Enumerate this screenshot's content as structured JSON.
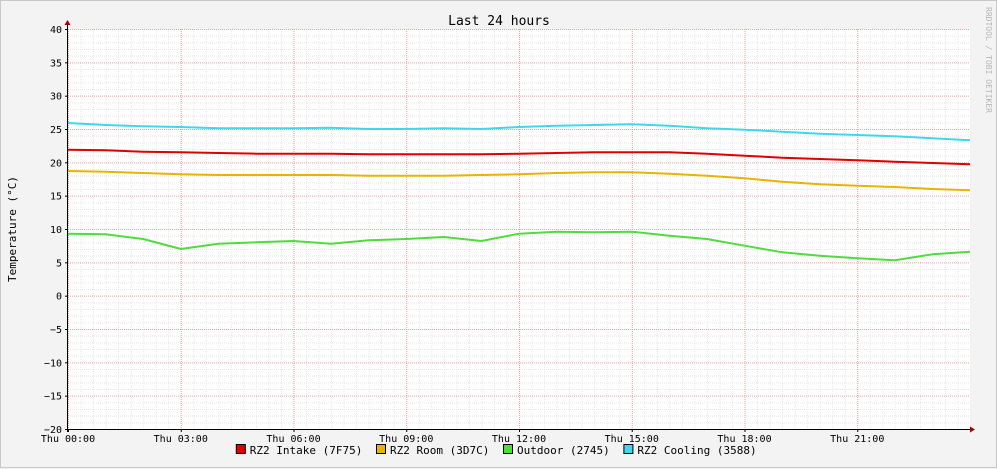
{
  "chart_data": {
    "type": "line",
    "title": "Last 24 hours",
    "ylabel": "Temperature (°C)",
    "xlabel": "",
    "watermark": "RRDTOOL / TOBI OETIKER",
    "ylim": [
      -20,
      40
    ],
    "yticks": [
      40,
      35,
      30,
      25,
      20,
      15,
      10,
      5,
      0,
      -5,
      -10,
      -15,
      -20
    ],
    "xlim": [
      0,
      24
    ],
    "xticks": [
      {
        "x": 0,
        "label": "Thu 00:00"
      },
      {
        "x": 3,
        "label": "Thu 03:00"
      },
      {
        "x": 6,
        "label": "Thu 06:00"
      },
      {
        "x": 9,
        "label": "Thu 09:00"
      },
      {
        "x": 12,
        "label": "Thu 12:00"
      },
      {
        "x": 15,
        "label": "Thu 15:00"
      },
      {
        "x": 18,
        "label": "Thu 18:00"
      },
      {
        "x": 21,
        "label": "Thu 21:00"
      }
    ],
    "grid": true,
    "legend_position": "bottom",
    "x": [
      0,
      1,
      2,
      3,
      4,
      5,
      6,
      7,
      8,
      9,
      10,
      11,
      12,
      13,
      14,
      15,
      16,
      17,
      18,
      19,
      20,
      21,
      22,
      23,
      24
    ],
    "series": [
      {
        "name": "RZ2 Intake (7F75)",
        "color": "#e00000",
        "values": [
          21.9,
          21.8,
          21.6,
          21.5,
          21.4,
          21.3,
          21.3,
          21.3,
          21.2,
          21.2,
          21.2,
          21.2,
          21.3,
          21.4,
          21.5,
          21.5,
          21.5,
          21.3,
          21.0,
          20.7,
          20.5,
          20.3,
          20.1,
          19.9,
          19.7
        ]
      },
      {
        "name": "RZ2 Room (3D7C)",
        "color": "#e8b400",
        "values": [
          18.7,
          18.6,
          18.4,
          18.2,
          18.1,
          18.1,
          18.1,
          18.1,
          18.0,
          18.0,
          18.0,
          18.1,
          18.2,
          18.4,
          18.5,
          18.5,
          18.3,
          18.0,
          17.6,
          17.1,
          16.7,
          16.5,
          16.3,
          16.0,
          15.8
        ]
      },
      {
        "name": "Outdoor (2745)",
        "color": "#50dc3c",
        "values": [
          9.3,
          9.2,
          8.5,
          7.0,
          7.8,
          8.0,
          8.2,
          7.8,
          8.3,
          8.5,
          8.8,
          8.2,
          9.3,
          9.6,
          9.5,
          9.6,
          9.0,
          8.5,
          7.5,
          6.5,
          6.0,
          5.6,
          5.3,
          6.2,
          6.6
        ]
      },
      {
        "name": "RZ2 Cooling (3588)",
        "color": "#40d8e8",
        "values": [
          25.9,
          25.6,
          25.4,
          25.3,
          25.1,
          25.1,
          25.1,
          25.2,
          25.0,
          25.0,
          25.1,
          25.0,
          25.3,
          25.5,
          25.6,
          25.7,
          25.5,
          25.1,
          24.9,
          24.6,
          24.3,
          24.1,
          23.9,
          23.6,
          23.3
        ]
      }
    ]
  }
}
